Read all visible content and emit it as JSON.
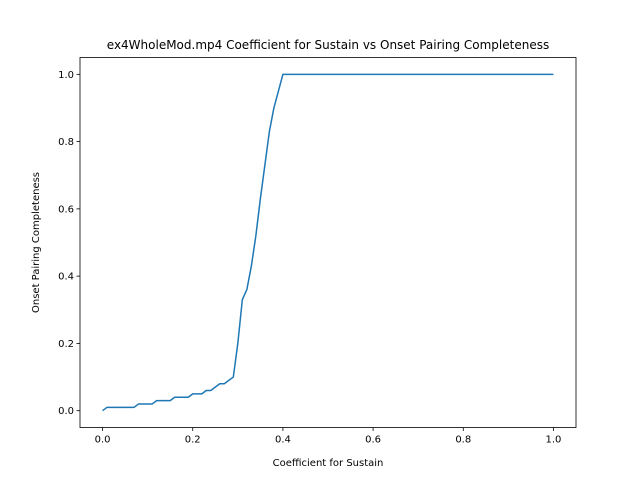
{
  "chart_data": {
    "type": "line",
    "title": "ex4WholeMod.mp4 Coefficient for Sustain vs Onset Pairing Completeness",
    "xlabel": "Coefficient for Sustain",
    "ylabel": "Onset Pairing Completeness",
    "xlim": [
      -0.05,
      1.05
    ],
    "ylim": [
      -0.05,
      1.05
    ],
    "xticks": [
      "0.0",
      "0.2",
      "0.4",
      "0.6",
      "0.8",
      "1.0"
    ],
    "yticks": [
      "0.0",
      "0.2",
      "0.4",
      "0.6",
      "0.8",
      "1.0"
    ],
    "grid": false,
    "series": [
      {
        "color": "#1f77b4",
        "x": [
          0.0,
          0.01,
          0.02,
          0.03,
          0.04,
          0.05,
          0.06,
          0.07,
          0.08,
          0.09,
          0.1,
          0.11,
          0.12,
          0.13,
          0.14,
          0.15,
          0.16,
          0.17,
          0.18,
          0.19,
          0.2,
          0.21,
          0.22,
          0.23,
          0.24,
          0.25,
          0.26,
          0.27,
          0.28,
          0.29,
          0.3,
          0.31,
          0.32,
          0.33,
          0.34,
          0.35,
          0.36,
          0.37,
          0.38,
          0.39,
          0.4,
          0.5,
          0.6,
          0.7,
          0.8,
          0.9,
          1.0
        ],
        "y": [
          0.0,
          0.01,
          0.01,
          0.01,
          0.01,
          0.01,
          0.01,
          0.01,
          0.02,
          0.02,
          0.02,
          0.02,
          0.03,
          0.03,
          0.03,
          0.03,
          0.04,
          0.04,
          0.04,
          0.04,
          0.05,
          0.05,
          0.05,
          0.06,
          0.06,
          0.07,
          0.08,
          0.08,
          0.09,
          0.1,
          0.2,
          0.33,
          0.36,
          0.43,
          0.52,
          0.63,
          0.73,
          0.83,
          0.9,
          0.95,
          1.0,
          1.0,
          1.0,
          1.0,
          1.0,
          1.0,
          1.0
        ]
      }
    ]
  }
}
